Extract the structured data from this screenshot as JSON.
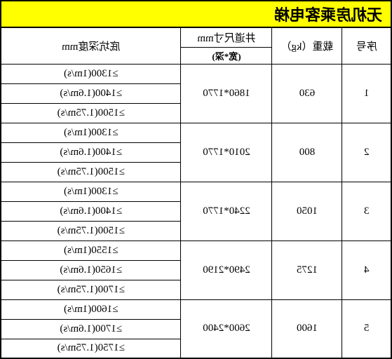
{
  "title": "无机房乘客电梯",
  "headers": {
    "seq": "序号",
    "load": "载重（kg）",
    "shaft_main": "井道尺寸mm",
    "shaft_sub": "(宽*深)",
    "pit": "底坑深度mm"
  },
  "rows": [
    {
      "seq": "1",
      "load": "630",
      "shaft": "1860*1770",
      "pits": [
        "≥1300(1m/s)",
        "≥1400(1.6m/s)",
        "≥1500(1.75m/s)"
      ]
    },
    {
      "seq": "2",
      "load": "800",
      "shaft": "2010*1770",
      "pits": [
        "≥1300(1m/s)",
        "≥1400(1.6m/s)",
        "≥1500(1.75m/s)"
      ]
    },
    {
      "seq": "3",
      "load": "1050",
      "shaft": "2240*1770",
      "pits": [
        "≥1300(1m/s)",
        "≥1400(1.6m/s)",
        "≥1500(1.75m/s)"
      ]
    },
    {
      "seq": "4",
      "load": "1275",
      "shaft": "2490*2190",
      "pits": [
        "≥1550(1m/s)",
        "≥1650(1.6m/s)",
        "≥1700(1.75m/s)"
      ]
    },
    {
      "seq": "5",
      "load": "1600",
      "shaft": "2600*2400",
      "pits": [
        "≥1600(1m/s)",
        "≥1700(1.6m/s)",
        "≥1750(1.75m/s)"
      ]
    }
  ]
}
